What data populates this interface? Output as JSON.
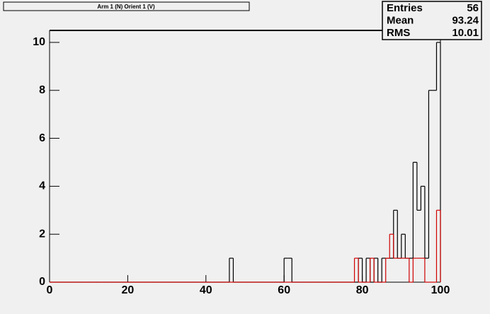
{
  "chart_data": {
    "type": "histogram",
    "title": "Arm 1 (N) Orient 1 (V)",
    "bins": [
      0,
      1,
      2,
      3,
      4,
      5,
      6,
      7,
      8,
      9,
      10,
      11,
      12,
      13,
      14,
      15,
      16,
      17,
      18,
      19,
      20,
      21,
      22,
      23,
      24,
      25,
      26,
      27,
      28,
      29,
      30,
      31,
      32,
      33,
      34,
      35,
      36,
      37,
      38,
      39,
      40,
      41,
      42,
      43,
      44,
      45,
      46,
      47,
      48,
      49,
      50,
      51,
      52,
      53,
      54,
      55,
      56,
      57,
      58,
      59,
      60,
      61,
      62,
      63,
      64,
      65,
      66,
      67,
      68,
      69,
      70,
      71,
      72,
      73,
      74,
      75,
      76,
      77,
      78,
      79,
      80,
      81,
      82,
      83,
      84,
      85,
      86,
      87,
      88,
      89,
      90,
      91,
      92,
      93,
      94,
      95,
      96,
      97,
      98,
      99,
      100
    ],
    "series": [
      {
        "color": "#000000",
        "values": [
          0,
          0,
          0,
          0,
          0,
          0,
          0,
          0,
          0,
          0,
          0,
          0,
          0,
          0,
          0,
          0,
          0,
          0,
          0,
          0,
          0,
          0,
          0,
          0,
          0,
          0,
          0,
          0,
          0,
          0,
          0,
          0,
          0,
          0,
          0,
          0,
          0,
          0,
          0,
          0,
          0,
          0,
          0,
          0,
          0,
          0,
          1,
          0,
          0,
          0,
          0,
          0,
          0,
          0,
          0,
          0,
          0,
          0,
          0,
          0,
          1,
          1,
          0,
          0,
          0,
          0,
          0,
          0,
          0,
          0,
          0,
          0,
          0,
          0,
          0,
          0,
          0,
          0,
          0,
          1,
          0,
          1,
          0,
          1,
          0,
          1,
          1,
          1,
          3,
          1,
          2,
          1,
          1,
          5,
          3,
          4,
          1,
          8,
          8,
          10
        ]
      },
      {
        "color": "#d00000",
        "values": [
          0,
          0,
          0,
          0,
          0,
          0,
          0,
          0,
          0,
          0,
          0,
          0,
          0,
          0,
          0,
          0,
          0,
          0,
          0,
          0,
          0,
          0,
          0,
          0,
          0,
          0,
          0,
          0,
          0,
          0,
          0,
          0,
          0,
          0,
          0,
          0,
          0,
          0,
          0,
          0,
          0,
          0,
          0,
          0,
          0,
          0,
          0,
          0,
          0,
          0,
          0,
          0,
          0,
          0,
          0,
          0,
          0,
          0,
          0,
          0,
          0,
          0,
          0,
          0,
          0,
          0,
          0,
          0,
          0,
          0,
          0,
          0,
          0,
          0,
          0,
          0,
          0,
          0,
          1,
          0,
          0,
          0,
          1,
          0,
          0,
          0,
          1,
          2,
          1,
          1,
          1,
          1,
          0,
          1,
          1,
          1,
          0,
          0,
          0,
          3
        ]
      }
    ],
    "xlim": [
      0,
      100
    ],
    "ylim": [
      0,
      10.5
    ],
    "xticks": [
      0,
      20,
      40,
      60,
      80,
      100
    ],
    "yticks": [
      0,
      2,
      4,
      6,
      8,
      10
    ],
    "stats": [
      {
        "label": "Entries",
        "value": "56"
      },
      {
        "label": "Mean",
        "value": "93.24"
      },
      {
        "label": "RMS",
        "value": "10.01"
      }
    ]
  }
}
